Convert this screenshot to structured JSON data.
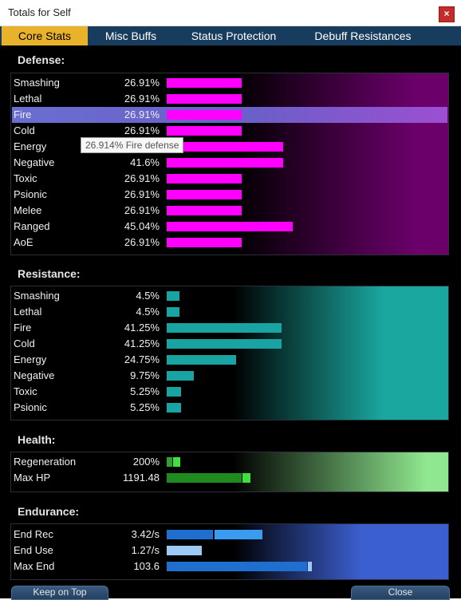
{
  "window": {
    "title": "Totals for Self",
    "close_glyph": "×"
  },
  "tabs": [
    {
      "label": "Core Stats",
      "active": true
    },
    {
      "label": "Misc Buffs",
      "active": false
    },
    {
      "label": "Status Protection",
      "active": false
    },
    {
      "label": "Debuff Resistances",
      "active": false
    }
  ],
  "defense": {
    "title": "Defense:",
    "rows": [
      {
        "label": "Smashing",
        "value": "26.91%",
        "level": 26.91
      },
      {
        "label": "Lethal",
        "value": "26.91%",
        "level": 26.91
      },
      {
        "label": "Fire",
        "value": "26.91%",
        "level": 26.91,
        "highlighted": true
      },
      {
        "label": "Cold",
        "value": "26.91%",
        "level": 26.91
      },
      {
        "label": "Energy",
        "value": "41.6%",
        "level": 41.6
      },
      {
        "label": "Negative",
        "value": "41.6%",
        "level": 41.6
      },
      {
        "label": "Toxic",
        "value": "26.91%",
        "level": 26.91
      },
      {
        "label": "Psionic",
        "value": "26.91%",
        "level": 26.91
      },
      {
        "label": "Melee",
        "value": "26.91%",
        "level": 26.91
      },
      {
        "label": "Ranged",
        "value": "45.04%",
        "level": 45.04
      },
      {
        "label": "AoE",
        "value": "26.91%",
        "level": 26.91
      }
    ],
    "tooltip": "26.914% Fire defense",
    "bar_color": "#ff00ff",
    "panel_color": "#6b006b"
  },
  "resistance": {
    "title": "Resistance:",
    "rows": [
      {
        "label": "Smashing",
        "value": "4.5%",
        "level": 4.5
      },
      {
        "label": "Lethal",
        "value": "4.5%",
        "level": 4.5
      },
      {
        "label": "Fire",
        "value": "41.25%",
        "level": 41.25
      },
      {
        "label": "Cold",
        "value": "41.25%",
        "level": 41.25
      },
      {
        "label": "Energy",
        "value": "24.75%",
        "level": 24.75
      },
      {
        "label": "Negative",
        "value": "9.75%",
        "level": 9.75
      },
      {
        "label": "Toxic",
        "value": "5.25%",
        "level": 5.25
      },
      {
        "label": "Psionic",
        "value": "5.25%",
        "level": 5.25
      }
    ],
    "bar_color": "#1aa3a3",
    "panel_color": "#1aa7a0"
  },
  "health": {
    "title": "Health:",
    "rows": [
      {
        "label": "Regeneration",
        "value": "200%"
      },
      {
        "label": "Max HP",
        "value": "1191.48"
      }
    ],
    "bar_color": "#2fa02f",
    "bar_bright": "#3fe03f",
    "panel_color": "#8fe88f"
  },
  "endurance": {
    "title": "Endurance:",
    "rows": [
      {
        "label": "End Rec",
        "value": "3.42/s"
      },
      {
        "label": "End Use",
        "value": "1.27/s"
      },
      {
        "label": "Max End",
        "value": "103.6"
      }
    ],
    "bar_color": "#1f6fd0",
    "bar_bright": "#3a9cf0",
    "bar_light": "#9ccaf5",
    "panel_color": "#3b5fd0"
  },
  "buttons": {
    "keep_on_top": "Keep on Top",
    "close": "Close"
  }
}
